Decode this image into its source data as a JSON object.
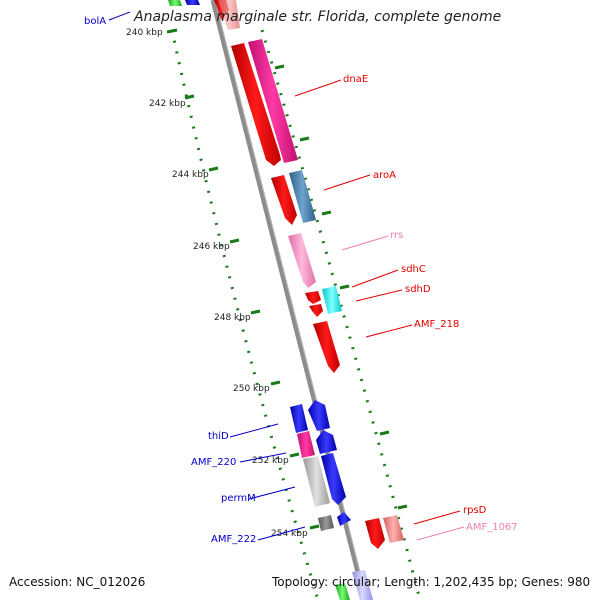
{
  "title": "Anaplasma marginale str. Florida, complete genome",
  "footer": {
    "accession": "Accession: NC_012026",
    "summary": "Topology: circular; Length: 1,202,435 bp; Genes: 980"
  },
  "colors": {
    "background": "#ffffff",
    "backbone": "#8c8c8c",
    "tick_dots": "#1a7a1a",
    "label_forward": "#0000c8",
    "label_reverse": "#e00000",
    "label_rna": "#f080b0",
    "gene_red": "#ff0000",
    "gene_magenta": "#ff1493",
    "gene_steelblue": "#4682b4",
    "gene_pink": "#ff99cc",
    "gene_cyan": "#00ffff",
    "gene_blue": "#0000ff",
    "gene_gray": "#bdbdbd",
    "gene_darkgray": "#777777",
    "gene_salmon": "#f08080"
  },
  "ticks": [
    "240 kbp",
    "242 kbp",
    "244 kbp",
    "246 kbp",
    "248 kbp",
    "250 kbp",
    "252 kbp",
    "254 kbp"
  ],
  "labels": [
    {
      "text": "bolA",
      "color": "label_forward"
    },
    {
      "text": "dnaE",
      "color": "label_reverse"
    },
    {
      "text": "aroA",
      "color": "label_reverse"
    },
    {
      "text": "rrs",
      "color": "label_rna"
    },
    {
      "text": "sdhC",
      "color": "label_reverse"
    },
    {
      "text": "sdhD",
      "color": "label_reverse"
    },
    {
      "text": "AMF_218",
      "color": "label_reverse"
    },
    {
      "text": "thiD",
      "color": "label_forward"
    },
    {
      "text": "AMF_220",
      "color": "label_forward"
    },
    {
      "text": "permM",
      "color": "label_forward"
    },
    {
      "text": "AMF_222",
      "color": "label_forward"
    },
    {
      "text": "rpsD",
      "color": "label_reverse"
    },
    {
      "text": "AMF_1067",
      "color": "label_rna"
    }
  ]
}
